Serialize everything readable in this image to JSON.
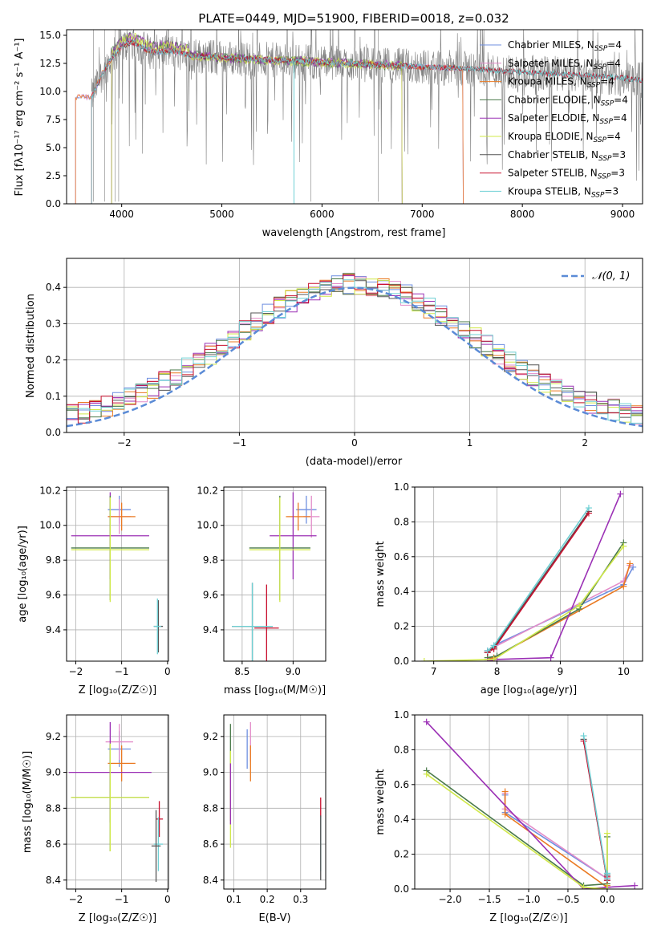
{
  "colors": {
    "chabrier_miles": "#6f8fe0",
    "salpeter_miles": "#e38cc9",
    "kroupa_miles": "#ea7a22",
    "chabrier_elodie": "#4a7a4a",
    "salpeter_elodie": "#9b30b5",
    "kroupa_elodie": "#d0e84a",
    "chabrier_stelib": "#555555",
    "salpeter_stelib": "#c8102e",
    "kroupa_stelib": "#6fd0d4",
    "data": "#7f7f7f",
    "normal": "#5b8bd6"
  },
  "chart_data": [
    {
      "type": "line",
      "title": "PLATE=0449, MJD=51900, FIBERID=0018, z=0.032",
      "xlabel": "wavelength [Angstrom, rest frame]",
      "ylabel": "Flux [fλ10⁻¹⁷ erg cm⁻² s⁻¹ A⁻¹]",
      "xlim": [
        3450,
        9200
      ],
      "ylim": [
        0,
        15.5
      ],
      "xticks": [
        4000,
        5000,
        6000,
        7000,
        8000,
        9000
      ],
      "yticks": [
        0.0,
        2.5,
        5.0,
        7.5,
        10.0,
        12.5,
        15.0
      ],
      "legend_position": "top-right",
      "legend": [
        {
          "label": "Chabrier MILES, N",
          "sub": "SSP",
          "suffix": "=4",
          "color_key": "chabrier_miles"
        },
        {
          "label": "Salpeter MILES, N",
          "sub": "SSP",
          "suffix": "=4",
          "color_key": "salpeter_miles"
        },
        {
          "label": "Kroupa MILES, N",
          "sub": "SSP",
          "suffix": "=4",
          "color_key": "kroupa_miles"
        },
        {
          "label": "Chabrier ELODIE, N",
          "sub": "SSP",
          "suffix": "=4",
          "color_key": "chabrier_elodie"
        },
        {
          "label": "Salpeter ELODIE, N",
          "sub": "SSP",
          "suffix": "=4",
          "color_key": "salpeter_elodie"
        },
        {
          "label": "Kroupa ELODIE, N",
          "sub": "SSP",
          "suffix": "=4",
          "color_key": "kroupa_elodie"
        },
        {
          "label": "Chabrier STELIB, N",
          "sub": "SSP",
          "suffix": "=3",
          "color_key": "chabrier_stelib"
        },
        {
          "label": "Salpeter STELIB, N",
          "sub": "SSP",
          "suffix": "=3",
          "color_key": "salpeter_stelib"
        },
        {
          "label": "Kroupa STELIB, N",
          "sub": "SSP",
          "suffix": "=3",
          "color_key": "kroupa_stelib"
        }
      ],
      "data_range": [
        3700,
        9200
      ],
      "model_ranges": {
        "miles": [
          3540,
          7410
        ],
        "elodie": [
          3900,
          6800
        ],
        "stelib": [
          3700,
          9200
        ]
      },
      "spectrum_profile": [
        [
          3700,
          9.5
        ],
        [
          3800,
          11.5
        ],
        [
          3900,
          13.0
        ],
        [
          4000,
          14.0
        ],
        [
          4100,
          14.4
        ],
        [
          4300,
          13.5
        ],
        [
          4500,
          13.6
        ],
        [
          4700,
          13.2
        ],
        [
          5000,
          13.0
        ],
        [
          5500,
          12.8
        ],
        [
          6000,
          12.6
        ],
        [
          6500,
          12.4
        ],
        [
          7000,
          12.2
        ],
        [
          7500,
          12.0
        ],
        [
          8000,
          11.7
        ],
        [
          8500,
          11.5
        ],
        [
          9000,
          11.2
        ],
        [
          9200,
          11.0
        ]
      ]
    },
    {
      "type": "step",
      "xlabel": "(data-model)/error",
      "ylabel": "Normed distribution",
      "xlim": [
        -2.5,
        2.5
      ],
      "ylim": [
        0,
        0.48
      ],
      "xticks": [
        -2,
        -1,
        0,
        1,
        2
      ],
      "yticks": [
        0.0,
        0.1,
        0.2,
        0.3,
        0.4
      ],
      "legend_position": "top-right",
      "legend": [
        {
          "label": "𝒩(0, 1)",
          "color_key": "normal"
        }
      ],
      "bin_width": 0.1,
      "bins_start": -2.5,
      "normal_curve": {
        "mu": 0,
        "sigma": 1
      }
    },
    {
      "type": "errorbar",
      "name": "age_vs_Z",
      "xlabel": "Z [log₁₀(Z/Z☉)]",
      "ylabel": "age  [log₁₀(age/yr)]",
      "xlim": [
        -2.2,
        0.02
      ],
      "ylim": [
        9.22,
        10.22
      ],
      "xticks": [
        -2,
        -1,
        0
      ],
      "yticks": [
        9.4,
        9.6,
        9.8,
        10.0,
        10.2
      ],
      "points": [
        {
          "color_key": "chabrier_miles",
          "x": -1.05,
          "xerr": 0.25,
          "y": 10.09,
          "yerr": 0.08
        },
        {
          "color_key": "salpeter_miles",
          "x": -1.05,
          "xerr": 0.25,
          "y": 10.05,
          "yerr": 0.1
        },
        {
          "color_key": "kroupa_miles",
          "x": -1.0,
          "xerr": 0.3,
          "y": 10.05,
          "yerr": 0.08
        },
        {
          "color_key": "salpeter_elodie",
          "x": -1.25,
          "xerr": 0.85,
          "y": 9.94,
          "yerr": 0.25
        },
        {
          "color_key": "chabrier_elodie",
          "x": -1.25,
          "xerr": 0.85,
          "y": 9.87,
          "yerr": 0.3
        },
        {
          "color_key": "kroupa_elodie",
          "x": -1.25,
          "xerr": 0.85,
          "y": 9.86,
          "yerr": 0.3
        },
        {
          "color_key": "chabrier_stelib",
          "x": -0.2,
          "xerr": 0.1,
          "y": 9.42,
          "yerr": 0.15
        },
        {
          "color_key": "kroupa_stelib",
          "x": -0.22,
          "xerr": 0.08,
          "y": 9.42,
          "yerr": 0.16
        }
      ]
    },
    {
      "type": "errorbar",
      "name": "age_vs_mass",
      "xlabel": "mass [log₁₀(M/M☉)]",
      "ylabel": "",
      "xlim": [
        8.32,
        9.32
      ],
      "ylim": [
        9.22,
        10.22
      ],
      "xticks": [
        8.5,
        9.0
      ],
      "yticks": [
        9.4,
        9.6,
        9.8,
        10.0,
        10.2
      ],
      "points": [
        {
          "color_key": "chabrier_miles",
          "x": 9.13,
          "xerr": 0.1,
          "y": 10.09,
          "yerr": 0.08
        },
        {
          "color_key": "salpeter_miles",
          "x": 9.18,
          "xerr": 0.08,
          "y": 10.05,
          "yerr": 0.12
        },
        {
          "color_key": "kroupa_miles",
          "x": 9.05,
          "xerr": 0.12,
          "y": 10.05,
          "yerr": 0.08
        },
        {
          "color_key": "salpeter_elodie",
          "x": 9.0,
          "xerr": 0.23,
          "y": 9.94,
          "yerr": 0.25
        },
        {
          "color_key": "chabrier_elodie",
          "x": 8.87,
          "xerr": 0.3,
          "y": 9.87,
          "yerr": 0.3
        },
        {
          "color_key": "kroupa_elodie",
          "x": 8.87,
          "xerr": 0.3,
          "y": 9.86,
          "yerr": 0.3
        },
        {
          "color_key": "salpeter_stelib",
          "x": 8.74,
          "xerr": 0.12,
          "y": 9.41,
          "yerr": 0.25
        },
        {
          "color_key": "chabrier_stelib",
          "x": 8.6,
          "xerr": 0.2,
          "y": 9.42,
          "yerr": 0.25
        },
        {
          "color_key": "kroupa_stelib",
          "x": 8.6,
          "xerr": 0.2,
          "y": 9.42,
          "yerr": 0.25
        }
      ]
    },
    {
      "type": "line",
      "name": "mass_weight_vs_age",
      "xlabel": "age  [log₁₀(age/yr)]",
      "ylabel": "mass weight",
      "xlim": [
        6.7,
        10.3
      ],
      "ylim": [
        0,
        1.0
      ],
      "xticks": [
        7,
        8,
        9,
        10
      ],
      "yticks": [
        0.0,
        0.2,
        0.4,
        0.6,
        0.8,
        1.0
      ],
      "series": [
        {
          "color_key": "chabrier_miles",
          "x": [
            7.85,
            7.95,
            10.0,
            10.15
          ],
          "y": [
            0.06,
            0.09,
            0.44,
            0.54
          ]
        },
        {
          "color_key": "salpeter_miles",
          "x": [
            7.85,
            7.95,
            10.0,
            10.1
          ],
          "y": [
            0.06,
            0.08,
            0.46,
            0.55
          ]
        },
        {
          "color_key": "kroupa_miles",
          "x": [
            7.85,
            7.95,
            10.0,
            10.1
          ],
          "y": [
            0.01,
            0.02,
            0.43,
            0.56
          ]
        },
        {
          "color_key": "chabrier_elodie",
          "x": [
            7.85,
            8.0,
            9.3,
            10.0
          ],
          "y": [
            0.02,
            0.03,
            0.3,
            0.68
          ]
        },
        {
          "color_key": "salpeter_elodie",
          "x": [
            7.85,
            8.0,
            8.85,
            9.95
          ],
          "y": [
            0.0,
            0.01,
            0.02,
            0.96
          ]
        },
        {
          "color_key": "kroupa_elodie",
          "x": [
            6.85,
            7.95,
            9.3,
            10.0
          ],
          "y": [
            0.0,
            0.01,
            0.32,
            0.66
          ]
        },
        {
          "color_key": "chabrier_stelib",
          "x": [
            7.85,
            7.95,
            9.45
          ],
          "y": [
            0.05,
            0.08,
            0.86
          ]
        },
        {
          "color_key": "salpeter_stelib",
          "x": [
            7.85,
            7.95,
            9.45
          ],
          "y": [
            0.05,
            0.07,
            0.85
          ]
        },
        {
          "color_key": "kroupa_stelib",
          "x": [
            7.85,
            7.95,
            9.45
          ],
          "y": [
            0.06,
            0.09,
            0.88
          ]
        }
      ]
    },
    {
      "type": "errorbar",
      "name": "mass_vs_Z",
      "xlabel": "Z [log₁₀(Z/Z☉)]",
      "ylabel": "mass [log₁₀(M/M☉)]",
      "xlim": [
        -2.2,
        0.02
      ],
      "ylim": [
        8.35,
        9.32
      ],
      "xticks": [
        -2,
        -1,
        0
      ],
      "yticks": [
        8.4,
        8.6,
        8.8,
        9.0,
        9.2
      ],
      "points": [
        {
          "color_key": "chabrier_miles",
          "x": -1.05,
          "xerr": 0.25,
          "y": 9.13,
          "yerr": 0.1
        },
        {
          "color_key": "salpeter_miles",
          "x": -1.05,
          "xerr": 0.3,
          "y": 9.17,
          "yerr": 0.1
        },
        {
          "color_key": "kroupa_miles",
          "x": -1.0,
          "xerr": 0.3,
          "y": 9.05,
          "yerr": 0.1
        },
        {
          "color_key": "salpeter_elodie",
          "x": -1.25,
          "xerr": 0.9,
          "y": 9.0,
          "yerr": 0.28
        },
        {
          "color_key": "chabrier_elodie",
          "x": -1.25,
          "xerr": 0.85,
          "y": 8.86,
          "yerr": 0.3
        },
        {
          "color_key": "kroupa_elodie",
          "x": -1.25,
          "xerr": 0.85,
          "y": 8.86,
          "yerr": 0.3
        },
        {
          "color_key": "salpeter_stelib",
          "x": -0.18,
          "xerr": 0.08,
          "y": 8.74,
          "yerr": 0.1
        },
        {
          "color_key": "kroupa_stelib",
          "x": -0.2,
          "xerr": 0.1,
          "y": 8.6,
          "yerr": 0.15
        },
        {
          "color_key": "chabrier_stelib",
          "x": -0.25,
          "xerr": 0.1,
          "y": 8.59,
          "yerr": 0.2
        }
      ]
    },
    {
      "type": "errorbar",
      "name": "mass_vs_ebv",
      "xlabel": "E(B-V)",
      "ylabel": "",
      "xlim": [
        0.07,
        0.375
      ],
      "ylim": [
        8.35,
        9.32
      ],
      "xticks": [
        0.1,
        0.2,
        0.3
      ],
      "yticks": [
        8.4,
        8.6,
        8.8,
        9.0,
        9.2
      ],
      "points": [
        {
          "color_key": "chabrier_elodie",
          "x": 0.09,
          "xerr": 0,
          "y": 9.0,
          "yerr": 0.27
        },
        {
          "color_key": "kroupa_elodie",
          "x": 0.09,
          "xerr": 0,
          "y": 8.85,
          "yerr": 0.27
        },
        {
          "color_key": "salpeter_elodie",
          "x": 0.09,
          "xerr": 0,
          "y": 8.88,
          "yerr": 0.17
        },
        {
          "color_key": "chabrier_miles",
          "x": 0.14,
          "xerr": 0,
          "y": 9.13,
          "yerr": 0.11
        },
        {
          "color_key": "salpeter_miles",
          "x": 0.15,
          "xerr": 0,
          "y": 9.17,
          "yerr": 0.11
        },
        {
          "color_key": "kroupa_miles",
          "x": 0.15,
          "xerr": 0,
          "y": 9.05,
          "yerr": 0.1
        },
        {
          "color_key": "salpeter_stelib",
          "x": 0.36,
          "xerr": 0,
          "y": 8.74,
          "yerr": 0.12
        },
        {
          "color_key": "kroupa_stelib",
          "x": 0.36,
          "xerr": 0,
          "y": 8.6,
          "yerr": 0.15
        },
        {
          "color_key": "chabrier_stelib",
          "x": 0.36,
          "xerr": 0,
          "y": 8.58,
          "yerr": 0.18
        }
      ]
    },
    {
      "type": "line",
      "name": "mass_weight_vs_Z",
      "xlabel": "Z [log₁₀(Z/Z☉)]",
      "ylabel": "mass weight",
      "xlim": [
        -2.45,
        0.45
      ],
      "ylim": [
        0,
        1.0
      ],
      "xticks": [
        -2.0,
        -1.5,
        -1.0,
        -0.5,
        0.0
      ],
      "yticks": [
        0.0,
        0.2,
        0.4,
        0.6,
        0.8,
        1.0
      ],
      "series": [
        {
          "color_key": "chabrier_miles",
          "x": [
            -1.3,
            -1.3,
            0.0,
            0.0
          ],
          "y": [
            0.54,
            0.44,
            0.06,
            0.09
          ]
        },
        {
          "color_key": "salpeter_miles",
          "x": [
            -1.3,
            -1.3,
            0.0,
            0.0
          ],
          "y": [
            0.55,
            0.46,
            0.06,
            0.08
          ]
        },
        {
          "color_key": "kroupa_miles",
          "x": [
            -1.3,
            -1.3,
            0.0,
            0.0
          ],
          "y": [
            0.56,
            0.43,
            0.01,
            0.02
          ]
        },
        {
          "color_key": "chabrier_elodie",
          "x": [
            -2.3,
            -0.3,
            0.0,
            0.0
          ],
          "y": [
            0.68,
            0.02,
            0.03,
            0.3
          ]
        },
        {
          "color_key": "salpeter_elodie",
          "x": [
            -2.3,
            -0.3,
            0.0,
            0.35
          ],
          "y": [
            0.96,
            0.0,
            0.01,
            0.02
          ]
        },
        {
          "color_key": "kroupa_elodie",
          "x": [
            -2.3,
            -0.3,
            0.0,
            0.0
          ],
          "y": [
            0.66,
            0.01,
            0.0,
            0.32
          ]
        },
        {
          "color_key": "chabrier_stelib",
          "x": [
            -0.3,
            0.0,
            0.0
          ],
          "y": [
            0.86,
            0.05,
            0.08
          ]
        },
        {
          "color_key": "salpeter_stelib",
          "x": [
            -0.3,
            0.0,
            0.0
          ],
          "y": [
            0.85,
            0.05,
            0.07
          ]
        },
        {
          "color_key": "kroupa_stelib",
          "x": [
            -0.3,
            0.0,
            0.0
          ],
          "y": [
            0.88,
            0.06,
            0.09
          ]
        }
      ]
    }
  ]
}
